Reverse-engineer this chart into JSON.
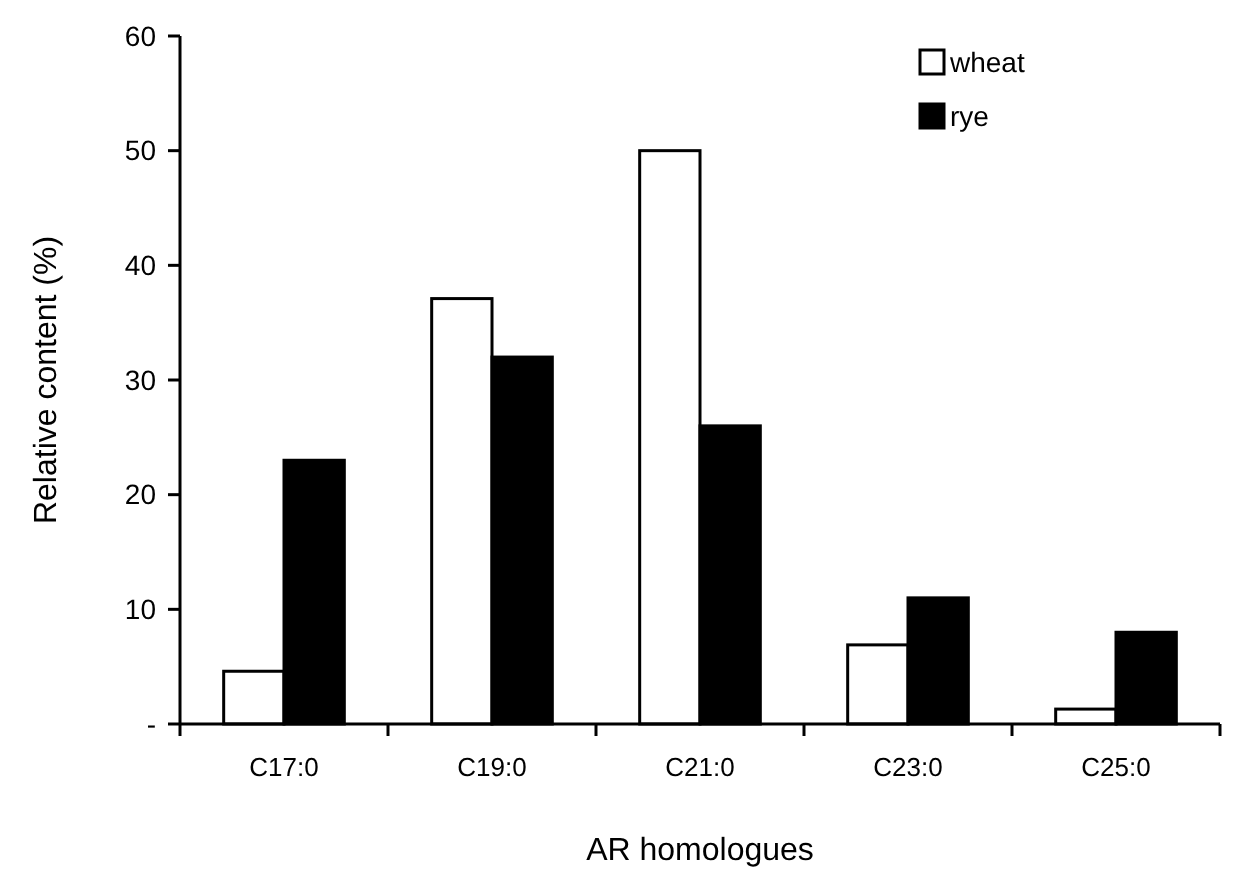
{
  "chart_data": {
    "type": "bar",
    "xlabel": "AR homologues",
    "ylabel": "Relative content (%)",
    "categories": [
      "C17:0",
      "C19:0",
      "C21:0",
      "C23:0",
      "C25:0"
    ],
    "series": [
      {
        "name": "wheat",
        "color": "#ffffff",
        "values": [
          4.6,
          37.1,
          50,
          6.9,
          1.3
        ]
      },
      {
        "name": "rye",
        "color": "#000000",
        "values": [
          23,
          32,
          26,
          11,
          8
        ]
      }
    ],
    "ylim": [
      0,
      60
    ],
    "yticks": [
      {
        "value": 0,
        "label": "-"
      },
      10,
      20,
      30,
      40,
      50,
      60
    ],
    "grid": false,
    "legend": "top right"
  }
}
